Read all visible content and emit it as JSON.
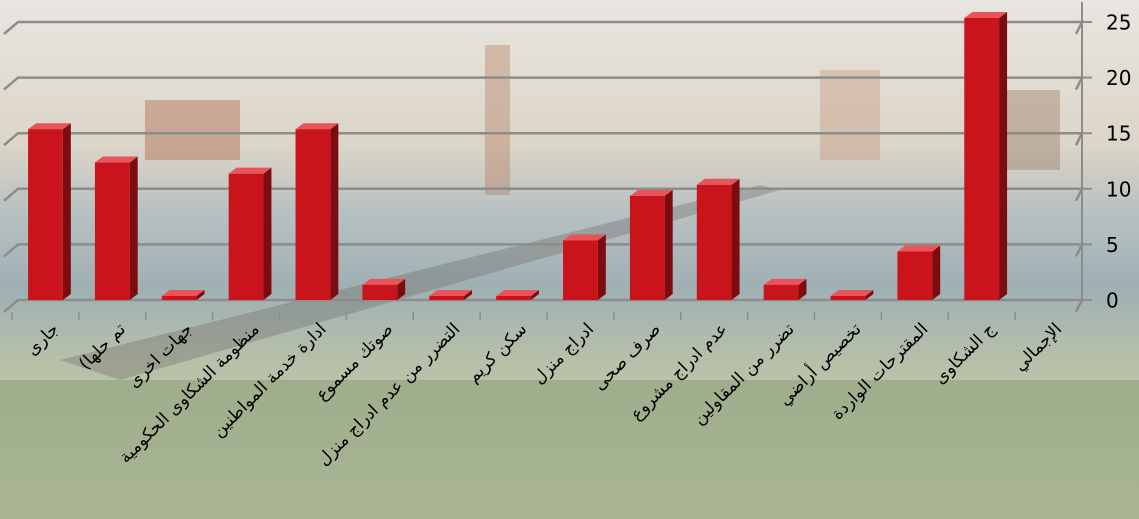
{
  "chart_data": {
    "type": "bar3d",
    "categories": [
      "جارى",
      "(تم حلها",
      "جهات اخرى",
      "منظومة الشكاوى الحكومية",
      "ادارة خدمة المواطنين",
      "صوتك مسموع",
      "التضرر من عدم ادراج منزل",
      "سكن كريم",
      "ادراج منزل",
      "صرف صحى",
      "عدم ادراج مشروع",
      "تضرر من المقاولين",
      "تخصيص أراضي",
      "المقترحات الواردة",
      "ج الشكاوى",
      "الإجمالي"
    ],
    "values": [
      15,
      12,
      0,
      11,
      15,
      1,
      0,
      0,
      5,
      9,
      10,
      1,
      0,
      4,
      25,
      null
    ],
    "color": "#c9141c",
    "ylim": [
      0,
      25
    ],
    "yticks": [
      0,
      5,
      10,
      15,
      20,
      25
    ],
    "grid": true
  }
}
